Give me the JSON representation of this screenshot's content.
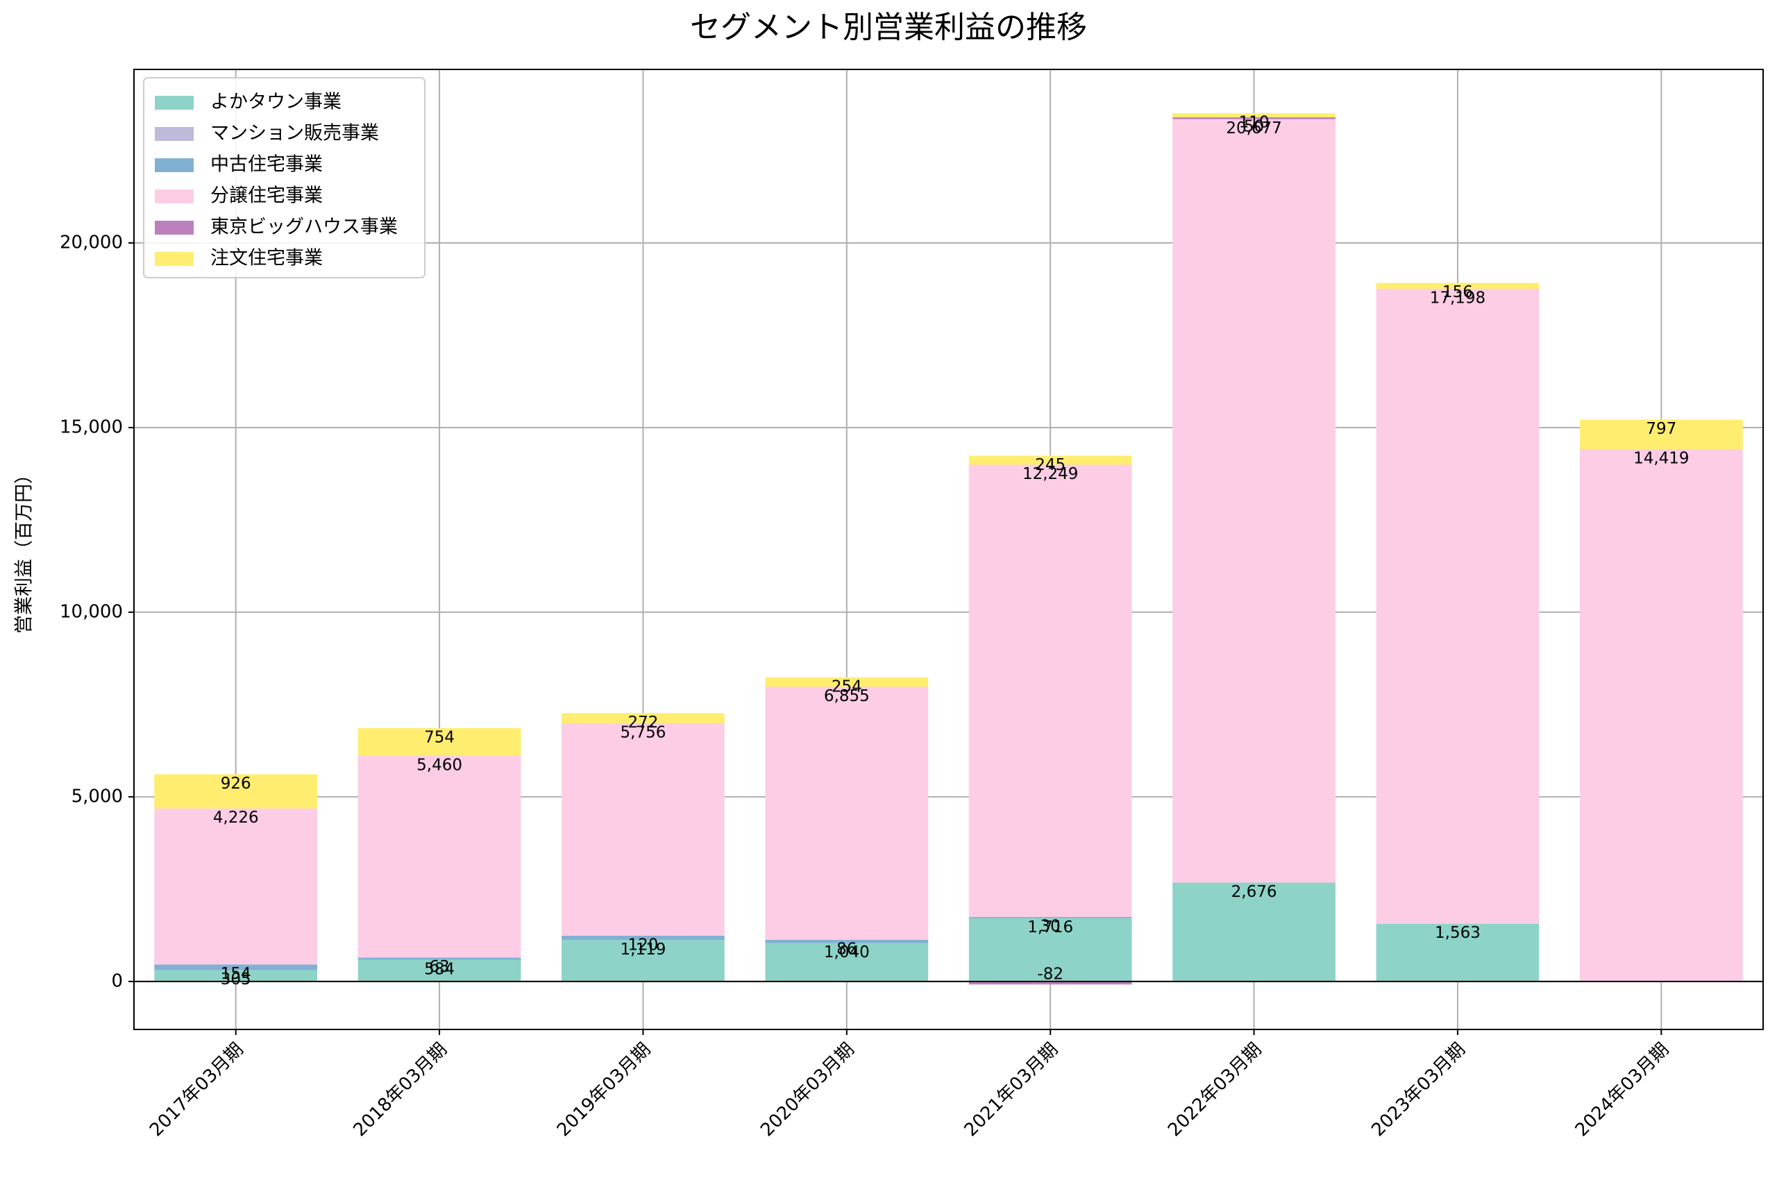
{
  "chart_data": {
    "type": "bar",
    "title": "セグメント別営業利益の推移",
    "xlabel": "",
    "ylabel": "営業利益（百万円）",
    "ylim": [
      -1300,
      24700
    ],
    "yticks": [
      0,
      5000,
      10000,
      15000,
      20000
    ],
    "ytick_labels": [
      "0",
      "5,000",
      "10,000",
      "15,000",
      "20,000"
    ],
    "grid": true,
    "legend_position": "top-left",
    "categories": [
      "2017年03月期",
      "2018年03月期",
      "2019年03月期",
      "2020年03月期",
      "2021年03月期",
      "2022年03月期",
      "2023年03月期",
      "2024年03月期"
    ],
    "series": [
      {
        "name": "よかタウン事業",
        "color": "#8dd3c7",
        "values": [
          305,
          584,
          1119,
          1040,
          1716,
          2676,
          1563,
          0
        ]
      },
      {
        "name": "マンション販売事業",
        "color": "#bebada",
        "values": [
          0,
          0,
          0,
          0,
          0,
          0,
          0,
          0
        ]
      },
      {
        "name": "中古住宅事業",
        "color": "#80b1d3",
        "values": [
          154,
          63,
          120,
          86,
          30,
          0,
          0,
          0
        ]
      },
      {
        "name": "分譲住宅事業",
        "color": "#fccde5",
        "values": [
          4226,
          5460,
          5756,
          6855,
          12249,
          20677,
          17198,
          14419
        ]
      },
      {
        "name": "東京ビッグハウス事業",
        "color": "#bc80bd",
        "values": [
          0,
          0,
          0,
          0,
          -82,
          50,
          0,
          0
        ]
      },
      {
        "name": "注文住宅事業",
        "color": "#ffed6f",
        "values": [
          926,
          754,
          272,
          254,
          245,
          110,
          156,
          797
        ]
      }
    ],
    "data_labels": [
      [
        "305",
        "584",
        "1,119",
        "1,040",
        "1,716",
        "2,676",
        "1,563",
        ""
      ],
      [
        "",
        "",
        "",
        "",
        "",
        "",
        "",
        ""
      ],
      [
        "154",
        "63",
        "120",
        "86",
        "30",
        "",
        "",
        ""
      ],
      [
        "4,226",
        "5,460",
        "5,756",
        "6,855",
        "12,249",
        "20,677",
        "17,198",
        "14,419"
      ],
      [
        "",
        "",
        "",
        "",
        "-82",
        "50",
        "",
        ""
      ],
      [
        "926",
        "754",
        "272",
        "254",
        "245",
        "110",
        "156",
        "797"
      ]
    ]
  }
}
